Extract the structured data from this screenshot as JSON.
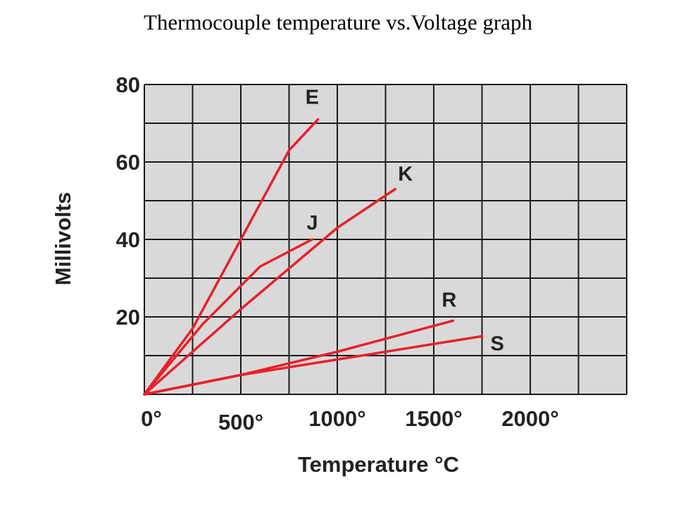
{
  "title": "Thermocouple temperature vs.Voltage graph",
  "chart_data": {
    "type": "line",
    "title": "Thermocouple temperature vs.Voltage graph",
    "xlabel": "Temperature °C",
    "ylabel": "Millivolts",
    "xlim": [
      0,
      2500
    ],
    "ylim": [
      0,
      80
    ],
    "grid": true,
    "legend": "none",
    "x_ticks": [
      {
        "value": 0,
        "label": "0°"
      },
      {
        "value": 500,
        "label": "500°"
      },
      {
        "value": 1000,
        "label": "1000°"
      },
      {
        "value": 1500,
        "label": "1500°"
      },
      {
        "value": 2000,
        "label": "2000°"
      }
    ],
    "y_ticks": [
      {
        "value": 20,
        "label": "20"
      },
      {
        "value": 40,
        "label": "40"
      },
      {
        "value": 60,
        "label": "60"
      },
      {
        "value": 80,
        "label": "80"
      }
    ],
    "series": [
      {
        "name": "E",
        "color": "#e8202a",
        "points": [
          [
            0,
            0
          ],
          [
            250,
            17
          ],
          [
            500,
            40
          ],
          [
            750,
            63
          ],
          [
            900,
            71
          ]
        ]
      },
      {
        "name": "J",
        "color": "#e8202a",
        "points": [
          [
            0,
            0
          ],
          [
            300,
            18
          ],
          [
            600,
            33
          ],
          [
            870,
            40
          ]
        ]
      },
      {
        "name": "K",
        "color": "#e8202a",
        "points": [
          [
            0,
            0
          ],
          [
            500,
            22
          ],
          [
            1000,
            43
          ],
          [
            1300,
            53
          ]
        ]
      },
      {
        "name": "R",
        "color": "#e8202a",
        "points": [
          [
            0,
            0
          ],
          [
            500,
            5
          ],
          [
            1000,
            11
          ],
          [
            1600,
            19
          ]
        ]
      },
      {
        "name": "S",
        "color": "#e8202a",
        "points": [
          [
            0,
            0
          ],
          [
            500,
            5
          ],
          [
            1000,
            9
          ],
          [
            1750,
            15
          ]
        ]
      }
    ]
  },
  "colors": {
    "plot_background": "#d9d9d9",
    "grid": "#1a1a1a",
    "series": "#e8202a"
  }
}
